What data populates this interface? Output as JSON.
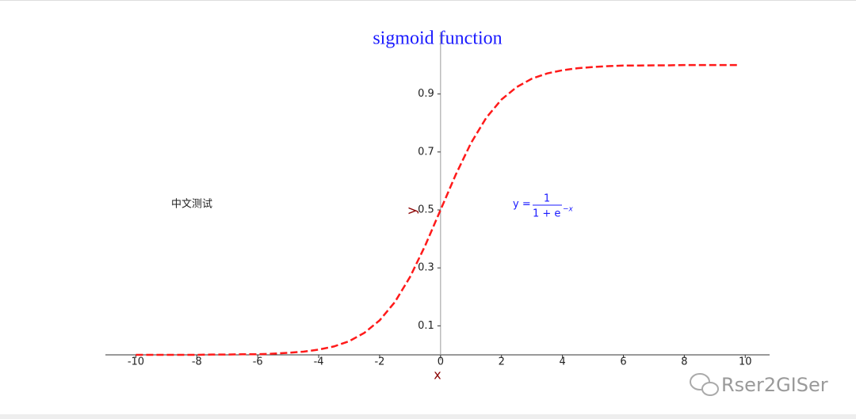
{
  "chart_data": {
    "type": "line",
    "title": "sigmoid function",
    "x": [
      -10,
      -9.5,
      -9,
      -8.5,
      -8,
      -7.5,
      -7,
      -6.5,
      -6,
      -5.5,
      -5,
      -4.5,
      -4,
      -3.5,
      -3,
      -2.5,
      -2,
      -1.5,
      -1,
      -0.5,
      0,
      0.5,
      1,
      1.5,
      2,
      2.5,
      3,
      3.5,
      4,
      4.5,
      5,
      5.5,
      6,
      6.5,
      7,
      7.5,
      8,
      8.5,
      9,
      9.5,
      9.8
    ],
    "values": [
      0.0,
      0.0,
      0.0,
      0.0,
      0.0,
      0.001,
      0.001,
      0.002,
      0.002,
      0.004,
      0.007,
      0.011,
      0.018,
      0.029,
      0.047,
      0.076,
      0.119,
      0.182,
      0.269,
      0.378,
      0.5,
      0.622,
      0.731,
      0.818,
      0.881,
      0.924,
      0.953,
      0.971,
      0.982,
      0.989,
      0.993,
      0.996,
      0.998,
      0.998,
      0.999,
      0.999,
      1.0,
      1.0,
      1.0,
      1.0,
      1.0
    ],
    "color": "#ff1a1a",
    "linestyle": "dashed",
    "xlim": [
      -11,
      10.8
    ],
    "ylim": [
      0,
      1.115
    ],
    "xticks": [
      -10,
      -8,
      -6,
      -4,
      -2,
      0,
      2,
      4,
      6,
      8,
      10
    ],
    "yticks": [
      0.1,
      0.3,
      0.5,
      0.7,
      0.9
    ],
    "xlabel": "x",
    "ylabel": "y",
    "annotations": {
      "note": "中文测试",
      "formula_lhs": "y =",
      "formula_numerator": "1",
      "formula_denominator": "1 + e",
      "formula_exponent": "−x"
    },
    "watermark": "Rser2GISer"
  }
}
